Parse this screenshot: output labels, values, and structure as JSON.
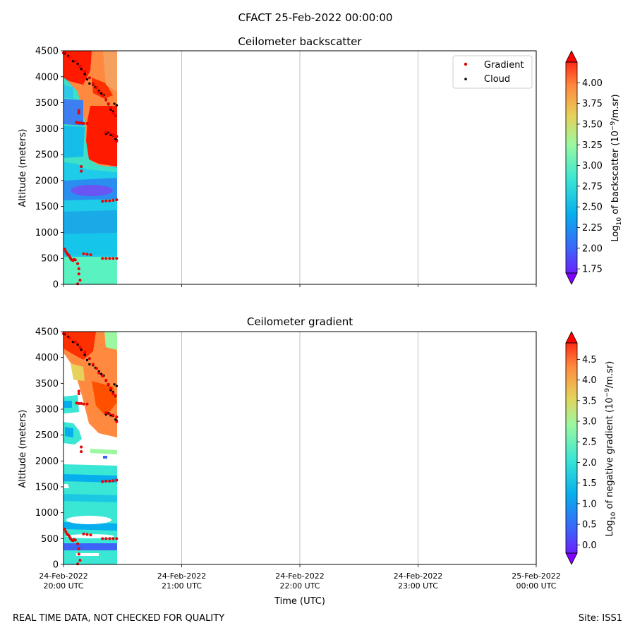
{
  "figure": {
    "suptitle": "CFACT 25-Feb-2022 00:00:00",
    "footer_left": "REAL TIME DATA, NOT CHECKED FOR QUALITY",
    "footer_right": "Site: ISS1"
  },
  "chart_data": [
    {
      "type": "heatmap",
      "title": "Ceilometer backscatter",
      "ylabel": "Altitude (meters)",
      "ylim": [
        0,
        4500
      ],
      "yticks": [
        0,
        500,
        1000,
        1500,
        2000,
        2500,
        3000,
        3500,
        4000,
        4500
      ],
      "xlim_hours_utc": [
        20,
        24
      ],
      "xticks": [
        "24-Feb-2022 20:00 UTC",
        "24-Feb-2022 21:00 UTC",
        "24-Feb-2022 22:00 UTC",
        "24-Feb-2022 23:00 UTC",
        "25-Feb-2022 00:00 UTC"
      ],
      "data_extent_hours_utc": [
        20.0,
        20.45
      ],
      "legend": {
        "placement": "top-right",
        "entries": [
          "Gradient",
          "Cloud"
        ],
        "colors": [
          "#ff0000",
          "#000000"
        ]
      },
      "colorbar": {
        "label_prefix": "Log",
        "label_sub": "10",
        "label_mid": " of backscatter (10",
        "label_sup": "−9",
        "label_end": "/m.sr)",
        "range": [
          1.7,
          4.25
        ],
        "ticks": [
          "1.75",
          "2.00",
          "2.25",
          "2.50",
          "2.75",
          "3.00",
          "3.25",
          "3.50",
          "3.75",
          "4.00"
        ],
        "tick_values": [
          1.75,
          2.0,
          2.25,
          2.5,
          2.75,
          3.0,
          3.25,
          3.5,
          3.75,
          4.0
        ]
      },
      "cloud_points": [
        [
          20.01,
          4450
        ],
        [
          20.04,
          4400
        ],
        [
          20.08,
          4300
        ],
        [
          20.12,
          4250
        ],
        [
          20.15,
          4150
        ],
        [
          20.18,
          4050
        ],
        [
          20.2,
          3950
        ],
        [
          20.22,
          3870
        ],
        [
          20.25,
          3850
        ],
        [
          20.27,
          3800
        ],
        [
          20.3,
          3730
        ],
        [
          20.32,
          3680
        ],
        [
          20.34,
          3650
        ],
        [
          20.36,
          3550
        ],
        [
          20.38,
          3470
        ],
        [
          20.4,
          3370
        ],
        [
          20.42,
          3330
        ],
        [
          20.44,
          3250
        ],
        [
          20.36,
          2900
        ],
        [
          20.38,
          2920
        ],
        [
          20.4,
          2880
        ],
        [
          20.42,
          2870
        ],
        [
          20.44,
          2800
        ],
        [
          20.45,
          2780
        ],
        [
          20.43,
          3480
        ],
        [
          20.45,
          3450
        ]
      ],
      "gradient_points": [
        [
          20.0,
          4460
        ],
        [
          20.05,
          4380
        ],
        [
          20.1,
          4300
        ],
        [
          20.14,
          4200
        ],
        [
          20.18,
          4100
        ],
        [
          20.22,
          3980
        ],
        [
          20.25,
          3870
        ],
        [
          20.28,
          3790
        ],
        [
          20.3,
          3700
        ],
        [
          20.33,
          3640
        ],
        [
          20.36,
          3560
        ],
        [
          20.38,
          3480
        ],
        [
          20.4,
          3400
        ],
        [
          20.42,
          3300
        ],
        [
          20.44,
          3260
        ],
        [
          20.13,
          3350
        ],
        [
          20.13,
          3300
        ],
        [
          20.11,
          3120
        ],
        [
          20.13,
          3110
        ],
        [
          20.15,
          3110
        ],
        [
          20.17,
          3100
        ],
        [
          20.2,
          3100
        ],
        [
          20.36,
          2930
        ],
        [
          20.39,
          2910
        ],
        [
          20.42,
          2880
        ],
        [
          20.45,
          2850
        ],
        [
          20.45,
          2760
        ],
        [
          20.15,
          2270
        ],
        [
          20.15,
          2180
        ],
        [
          20.33,
          1600
        ],
        [
          20.36,
          1610
        ],
        [
          20.39,
          1610
        ],
        [
          20.42,
          1620
        ],
        [
          20.45,
          1630
        ],
        [
          20.01,
          680
        ],
        [
          20.02,
          630
        ],
        [
          20.03,
          590
        ],
        [
          20.04,
          570
        ],
        [
          20.05,
          540
        ],
        [
          20.06,
          500
        ],
        [
          20.07,
          470
        ],
        [
          20.08,
          460
        ],
        [
          20.09,
          480
        ],
        [
          20.1,
          470
        ],
        [
          20.12,
          400
        ],
        [
          20.13,
          300
        ],
        [
          20.13,
          200
        ],
        [
          20.14,
          80
        ],
        [
          20.12,
          10
        ],
        [
          20.17,
          590
        ],
        [
          20.2,
          580
        ],
        [
          20.23,
          570
        ],
        [
          20.33,
          500
        ],
        [
          20.36,
          500
        ],
        [
          20.39,
          500
        ],
        [
          20.42,
          500
        ],
        [
          20.45,
          500
        ]
      ]
    },
    {
      "type": "heatmap",
      "title": "Ceilometer gradient",
      "xlabel": "Time (UTC)",
      "ylabel": "Altitude (meters)",
      "ylim": [
        0,
        4500
      ],
      "yticks": [
        0,
        500,
        1000,
        1500,
        2000,
        2500,
        3000,
        3500,
        4000,
        4500
      ],
      "xlim_hours_utc": [
        20,
        24
      ],
      "xticks": [
        "24-Feb-2022 20:00 UTC",
        "24-Feb-2022 21:00 UTC",
        "24-Feb-2022 22:00 UTC",
        "24-Feb-2022 23:00 UTC",
        "25-Feb-2022 00:00 UTC"
      ],
      "data_extent_hours_utc": [
        20.0,
        20.45
      ],
      "colorbar": {
        "label_prefix": "Log",
        "label_sub": "10",
        "label_mid": " of negative gradient (10",
        "label_sup": "−9",
        "label_end": "/m.sr)",
        "range": [
          -0.2,
          4.9
        ],
        "ticks": [
          "0.0",
          "0.5",
          "1.0",
          "1.5",
          "2.0",
          "2.5",
          "3.0",
          "3.5",
          "4.0",
          "4.5"
        ],
        "tick_values": [
          0,
          0.5,
          1.0,
          1.5,
          2.0,
          2.5,
          3.0,
          3.5,
          4.0,
          4.5
        ]
      }
    }
  ]
}
